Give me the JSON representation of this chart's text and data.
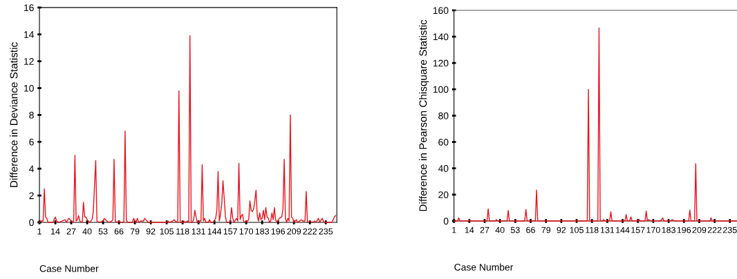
{
  "chart_data": [
    {
      "type": "line",
      "xlabel": "Case Number",
      "ylabel": "Difference in Deviance Statistic",
      "grid": false,
      "marker": "none",
      "line_style": "solid",
      "xlim": [
        1,
        244
      ],
      "xticks": [
        1,
        14,
        27,
        40,
        53,
        66,
        79,
        92,
        105,
        118,
        131,
        144,
        157,
        170,
        183,
        196,
        209,
        222,
        235
      ],
      "ylim": [
        0,
        16
      ],
      "yticks": [
        0,
        2,
        4,
        6,
        8,
        10,
        12,
        14,
        16
      ],
      "series": [
        {
          "color": "#e8141c",
          "x": [
            1,
            2,
            3,
            4,
            5,
            6,
            7,
            8,
            12,
            14,
            15,
            17,
            22,
            23,
            25,
            26,
            28,
            29,
            30,
            31,
            32,
            33,
            34,
            36,
            37,
            38,
            39,
            40,
            42,
            44,
            45,
            47,
            48,
            50,
            53,
            54,
            56,
            58,
            60,
            61,
            62,
            63,
            64,
            66,
            67,
            70,
            71,
            72,
            73,
            77,
            78,
            79,
            80,
            81,
            82,
            84,
            86,
            87,
            88,
            89,
            90,
            105,
            106,
            107,
            110,
            111,
            112,
            114,
            115,
            116,
            118,
            119,
            120,
            122,
            123,
            124,
            125,
            126,
            127,
            128,
            129,
            130,
            131,
            132,
            133,
            134,
            135,
            136,
            137,
            139,
            140,
            141,
            143,
            145,
            146,
            147,
            148,
            149,
            150,
            151,
            152,
            153,
            154,
            156,
            157,
            158,
            159,
            160,
            162,
            163,
            164,
            165,
            166,
            167,
            168,
            170,
            171,
            172,
            173,
            174,
            175,
            176,
            177,
            178,
            179,
            180,
            181,
            182,
            183,
            184,
            185,
            186,
            187,
            188,
            189,
            190,
            191,
            192,
            193,
            194,
            195,
            197,
            199,
            200,
            201,
            202,
            203,
            204,
            205,
            206,
            207,
            208,
            209,
            211,
            212,
            215,
            216,
            217,
            218,
            219,
            220,
            222,
            224,
            226,
            227,
            229,
            230,
            232,
            233,
            234,
            238,
            240,
            242,
            243
          ],
          "values": [
            0,
            0.1,
            0.1,
            0.1,
            2.5,
            0.4,
            0.3,
            0,
            0,
            0.4,
            0.1,
            0,
            0.2,
            0,
            0.3,
            0.2,
            0,
            0.1,
            5.0,
            0.1,
            0.2,
            0.5,
            0.1,
            0,
            1.5,
            0.4,
            0.4,
            0.2,
            0,
            0.2,
            0.8,
            4.6,
            0.1,
            0,
            0.1,
            0.3,
            0.1,
            0,
            0.1,
            0.2,
            4.7,
            0.1,
            0,
            0.1,
            0,
            0,
            6.8,
            0.2,
            0,
            0,
            0.3,
            0.1,
            0,
            0.3,
            0,
            0.1,
            0.1,
            0.3,
            0.2,
            0.1,
            0,
            0,
            0.1,
            0,
            0.1,
            0.2,
            0.1,
            0,
            9.8,
            0,
            0,
            0.1,
            0,
            0.1,
            0,
            13.9,
            0,
            0,
            0.2,
            0.9,
            0.4,
            0,
            0,
            0.1,
            0.1,
            4.3,
            0.1,
            0.3,
            0,
            0,
            0.2,
            0,
            0,
            0.3,
            0.9,
            3.8,
            0.1,
            0.6,
            1.4,
            3.1,
            1.8,
            0.4,
            0,
            0,
            0.1,
            1.1,
            0.3,
            0,
            0.3,
            0.1,
            4.4,
            0.2,
            0.5,
            0.6,
            0,
            0.1,
            0.1,
            0.2,
            1.6,
            0.9,
            0.8,
            1.0,
            1.6,
            2.4,
            0.5,
            0.1,
            0.7,
            0.2,
            0.3,
            0.9,
            0.2,
            1.1,
            0.4,
            0.3,
            0,
            0.1,
            0.7,
            0.2,
            1.1,
            0.2,
            0,
            0.3,
            0.4,
            1.0,
            4.7,
            0.3,
            0,
            0.3,
            0.1,
            8.0,
            0.4,
            0.3,
            0,
            0.2,
            0,
            0.2,
            0.1,
            0.1,
            0.1,
            2.3,
            0,
            0.1,
            0,
            0.1,
            0,
            0.3,
            0,
            0.3,
            0.1,
            0,
            0,
            0,
            0.4,
            0.5
          ]
        }
      ]
    },
    {
      "type": "line",
      "xlabel": "Case Number",
      "ylabel": "Difference in Pearson Chisquare Statistic",
      "grid": false,
      "marker": "none",
      "line_style": "solid",
      "xlim": [
        1,
        241
      ],
      "xticks": [
        1,
        14,
        27,
        40,
        53,
        66,
        79,
        92,
        105,
        118,
        131,
        144,
        157,
        170,
        183,
        196,
        209,
        222,
        235
      ],
      "ylim": [
        0,
        160
      ],
      "yticks": [
        0,
        20,
        40,
        60,
        80,
        100,
        120,
        140,
        160
      ],
      "series": [
        {
          "color": "#e8141c",
          "x": [
            1,
            4,
            5,
            6,
            13,
            14,
            15,
            29,
            30,
            31,
            36,
            37,
            38,
            46,
            47,
            48,
            61,
            62,
            63,
            70,
            71,
            72,
            114,
            115,
            116,
            123,
            124,
            125,
            127,
            128,
            129,
            133,
            134,
            135,
            146,
            147,
            148,
            150,
            151,
            152,
            157,
            158,
            159,
            163,
            164,
            165,
            166,
            168,
            176,
            177,
            178,
            179,
            185,
            186,
            188,
            200,
            201,
            202,
            205,
            206,
            207,
            218,
            219,
            220,
            241
          ],
          "values": [
            0,
            0,
            2.3,
            0,
            0,
            0.5,
            0,
            0,
            9.2,
            0,
            0,
            1,
            0,
            0,
            8,
            0,
            0,
            8.7,
            0,
            0,
            23.5,
            0,
            0,
            100,
            0,
            0,
            146.6,
            0,
            0,
            1,
            0,
            0,
            7,
            0,
            0,
            4.9,
            0,
            0,
            3.2,
            0,
            0,
            1,
            0,
            0,
            7.5,
            0,
            1,
            0,
            0,
            1,
            2.3,
            0,
            0,
            1,
            0,
            0,
            8.3,
            0,
            0,
            43.6,
            0,
            0,
            2.3,
            0,
            0
          ]
        }
      ]
    }
  ]
}
